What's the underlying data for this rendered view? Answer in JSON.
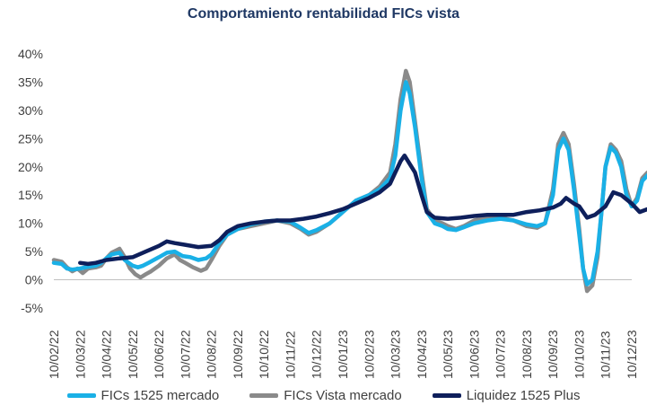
{
  "chart_data": {
    "type": "line",
    "title": "Comportamiento rentabilidad FICs vista",
    "xlabel": "",
    "ylabel": "",
    "ylim": [
      -5,
      40
    ],
    "yticks": [
      "40%",
      "35%",
      "30%",
      "25%",
      "20%",
      "15%",
      "10%",
      "5%",
      "0%",
      "-5%"
    ],
    "ytick_values": [
      40,
      35,
      30,
      25,
      20,
      15,
      10,
      5,
      0,
      -5
    ],
    "x_start": "10/02/22",
    "x_end": "10/12/23",
    "x_units": "months since 10/02/22",
    "xticks": [
      "10/02/22",
      "10/03/22",
      "10/04/22",
      "10/05/22",
      "10/06/22",
      "10/07/22",
      "10/08/22",
      "10/09/22",
      "10/10/22",
      "10/11/22",
      "10/12/22",
      "10/01/23",
      "10/02/23",
      "10/03/23",
      "10/04/23",
      "10/05/23",
      "10/06/23",
      "10/07/23",
      "10/08/23",
      "10/09/23",
      "10/10/23",
      "10/11/23",
      "10/12/23"
    ],
    "grid": false,
    "legend_position": "bottom",
    "series": [
      {
        "name": "FICs 1525 mercado",
        "color": "#1ab0e6",
        "points": [
          [
            0,
            3.0
          ],
          [
            0.3,
            2.8
          ],
          [
            0.5,
            2.0
          ],
          [
            0.7,
            1.8
          ],
          [
            1,
            2.0
          ],
          [
            1.3,
            2.3
          ],
          [
            1.6,
            2.5
          ],
          [
            1.8,
            3.0
          ],
          [
            2,
            3.8
          ],
          [
            2.2,
            4.5
          ],
          [
            2.5,
            4.8
          ],
          [
            2.7,
            3.5
          ],
          [
            3,
            2.5
          ],
          [
            3.2,
            2.2
          ],
          [
            3.4,
            2.5
          ],
          [
            3.6,
            3.0
          ],
          [
            4,
            4.0
          ],
          [
            4.3,
            4.8
          ],
          [
            4.6,
            5.0
          ],
          [
            4.9,
            4.2
          ],
          [
            5.2,
            4.0
          ],
          [
            5.5,
            3.5
          ],
          [
            5.8,
            3.8
          ],
          [
            6,
            4.5
          ],
          [
            6.3,
            6.5
          ],
          [
            6.6,
            8.0
          ],
          [
            7,
            9.0
          ],
          [
            7.5,
            9.8
          ],
          [
            8,
            10.3
          ],
          [
            8.5,
            10.5
          ],
          [
            9,
            10.3
          ],
          [
            9.4,
            9.2
          ],
          [
            9.7,
            8.3
          ],
          [
            10,
            8.8
          ],
          [
            10.5,
            10.0
          ],
          [
            11,
            12.0
          ],
          [
            11.5,
            14.0
          ],
          [
            12,
            15.0
          ],
          [
            12.4,
            16.0
          ],
          [
            12.8,
            18.0
          ],
          [
            13.0,
            22.0
          ],
          [
            13.2,
            30.0
          ],
          [
            13.4,
            35.0
          ],
          [
            13.55,
            33.0
          ],
          [
            13.75,
            27.0
          ],
          [
            14,
            18.0
          ],
          [
            14.2,
            12.0
          ],
          [
            14.5,
            10.0
          ],
          [
            14.8,
            9.5
          ],
          [
            15,
            9.0
          ],
          [
            15.3,
            8.8
          ],
          [
            15.6,
            9.3
          ],
          [
            16,
            10.0
          ],
          [
            16.5,
            10.5
          ],
          [
            17,
            10.8
          ],
          [
            17.5,
            10.5
          ],
          [
            18,
            9.8
          ],
          [
            18.4,
            9.5
          ],
          [
            18.7,
            10.0
          ],
          [
            19,
            15.0
          ],
          [
            19.2,
            23.0
          ],
          [
            19.4,
            25.0
          ],
          [
            19.6,
            23.0
          ],
          [
            19.8,
            16.0
          ],
          [
            20,
            8.0
          ],
          [
            20.15,
            2.0
          ],
          [
            20.3,
            -0.8
          ],
          [
            20.5,
            0.0
          ],
          [
            20.7,
            5.0
          ],
          [
            20.85,
            12.0
          ],
          [
            21,
            20.0
          ],
          [
            21.2,
            23.5
          ],
          [
            21.4,
            22.5
          ],
          [
            21.6,
            20.0
          ],
          [
            21.8,
            15.0
          ],
          [
            22,
            13.0
          ],
          [
            22.2,
            14.0
          ],
          [
            22.4,
            17.5
          ],
          [
            22.6,
            18.5
          ],
          [
            22.7,
            18.3
          ]
        ]
      },
      {
        "name": "FICs Vista mercado",
        "color": "#8a8a8a",
        "points": [
          [
            0,
            3.5
          ],
          [
            0.3,
            3.2
          ],
          [
            0.5,
            2.2
          ],
          [
            0.7,
            1.5
          ],
          [
            0.9,
            2.0
          ],
          [
            1.1,
            1.2
          ],
          [
            1.3,
            2.0
          ],
          [
            1.6,
            2.2
          ],
          [
            1.8,
            2.5
          ],
          [
            2,
            3.8
          ],
          [
            2.2,
            4.8
          ],
          [
            2.5,
            5.5
          ],
          [
            2.7,
            4.0
          ],
          [
            2.9,
            2.0
          ],
          [
            3.1,
            1.0
          ],
          [
            3.3,
            0.4
          ],
          [
            3.5,
            1.0
          ],
          [
            3.7,
            1.5
          ],
          [
            4,
            2.5
          ],
          [
            4.3,
            3.8
          ],
          [
            4.6,
            4.5
          ],
          [
            4.8,
            3.5
          ],
          [
            5,
            3.0
          ],
          [
            5.3,
            2.2
          ],
          [
            5.6,
            1.6
          ],
          [
            5.8,
            2.0
          ],
          [
            6,
            3.5
          ],
          [
            6.3,
            6.0
          ],
          [
            6.6,
            8.0
          ],
          [
            7,
            9.0
          ],
          [
            7.5,
            9.5
          ],
          [
            8,
            10.0
          ],
          [
            8.5,
            10.5
          ],
          [
            9,
            10.0
          ],
          [
            9.4,
            9.0
          ],
          [
            9.7,
            8.0
          ],
          [
            10,
            8.5
          ],
          [
            10.5,
            10.0
          ],
          [
            11,
            12.0
          ],
          [
            11.5,
            14.0
          ],
          [
            12,
            15.0
          ],
          [
            12.4,
            16.5
          ],
          [
            12.8,
            19.0
          ],
          [
            13.0,
            24.0
          ],
          [
            13.2,
            32.0
          ],
          [
            13.4,
            37.0
          ],
          [
            13.55,
            35.0
          ],
          [
            13.75,
            28.0
          ],
          [
            14,
            19.0
          ],
          [
            14.2,
            12.5
          ],
          [
            14.5,
            10.5
          ],
          [
            14.8,
            10.0
          ],
          [
            15,
            9.5
          ],
          [
            15.3,
            9.0
          ],
          [
            15.6,
            9.5
          ],
          [
            16,
            10.5
          ],
          [
            16.5,
            11.0
          ],
          [
            17,
            11.0
          ],
          [
            17.5,
            10.5
          ],
          [
            18,
            9.5
          ],
          [
            18.4,
            9.2
          ],
          [
            18.7,
            10.0
          ],
          [
            19,
            16.0
          ],
          [
            19.2,
            24.0
          ],
          [
            19.4,
            26.0
          ],
          [
            19.6,
            24.0
          ],
          [
            19.8,
            17.0
          ],
          [
            20,
            9.0
          ],
          [
            20.15,
            2.0
          ],
          [
            20.3,
            -2.0
          ],
          [
            20.5,
            -1.0
          ],
          [
            20.7,
            4.0
          ],
          [
            20.85,
            12.0
          ],
          [
            21,
            20.0
          ],
          [
            21.2,
            24.0
          ],
          [
            21.4,
            23.0
          ],
          [
            21.6,
            21.0
          ],
          [
            21.8,
            16.0
          ],
          [
            22,
            13.0
          ],
          [
            22.2,
            14.5
          ],
          [
            22.4,
            18.0
          ],
          [
            22.6,
            19.0
          ],
          [
            22.7,
            18.8
          ]
        ]
      },
      {
        "name": "Liquidez 1525 Plus",
        "color": "#0e1f5b",
        "points": [
          [
            1,
            3.0
          ],
          [
            1.3,
            2.8
          ],
          [
            1.6,
            3.0
          ],
          [
            2,
            3.5
          ],
          [
            2.5,
            3.8
          ],
          [
            3,
            4.0
          ],
          [
            3.5,
            5.0
          ],
          [
            4,
            6.0
          ],
          [
            4.3,
            6.8
          ],
          [
            4.6,
            6.5
          ],
          [
            5,
            6.2
          ],
          [
            5.5,
            5.8
          ],
          [
            6,
            6.0
          ],
          [
            6.3,
            7.0
          ],
          [
            6.6,
            8.5
          ],
          [
            7,
            9.5
          ],
          [
            7.5,
            10.0
          ],
          [
            8,
            10.3
          ],
          [
            8.5,
            10.5
          ],
          [
            9,
            10.5
          ],
          [
            9.5,
            10.8
          ],
          [
            10,
            11.2
          ],
          [
            10.5,
            11.8
          ],
          [
            11,
            12.5
          ],
          [
            11.5,
            13.5
          ],
          [
            12,
            14.5
          ],
          [
            12.4,
            15.5
          ],
          [
            12.8,
            17.0
          ],
          [
            13.0,
            19.0
          ],
          [
            13.2,
            21.0
          ],
          [
            13.35,
            22.0
          ],
          [
            13.55,
            20.5
          ],
          [
            13.75,
            19.0
          ],
          [
            14,
            15.0
          ],
          [
            14.2,
            12.0
          ],
          [
            14.5,
            11.0
          ],
          [
            15,
            10.8
          ],
          [
            15.5,
            11.0
          ],
          [
            16,
            11.3
          ],
          [
            16.5,
            11.5
          ],
          [
            17,
            11.5
          ],
          [
            17.5,
            11.5
          ],
          [
            18,
            12.0
          ],
          [
            18.5,
            12.3
          ],
          [
            19,
            12.8
          ],
          [
            19.3,
            13.5
          ],
          [
            19.5,
            14.5
          ],
          [
            19.8,
            13.5
          ],
          [
            20,
            13.0
          ],
          [
            20.3,
            11.0
          ],
          [
            20.6,
            11.5
          ],
          [
            21,
            13.0
          ],
          [
            21.3,
            15.5
          ],
          [
            21.6,
            15.0
          ],
          [
            22,
            13.5
          ],
          [
            22.3,
            12.0
          ],
          [
            22.6,
            12.5
          ],
          [
            22.7,
            12.3
          ]
        ]
      }
    ]
  }
}
